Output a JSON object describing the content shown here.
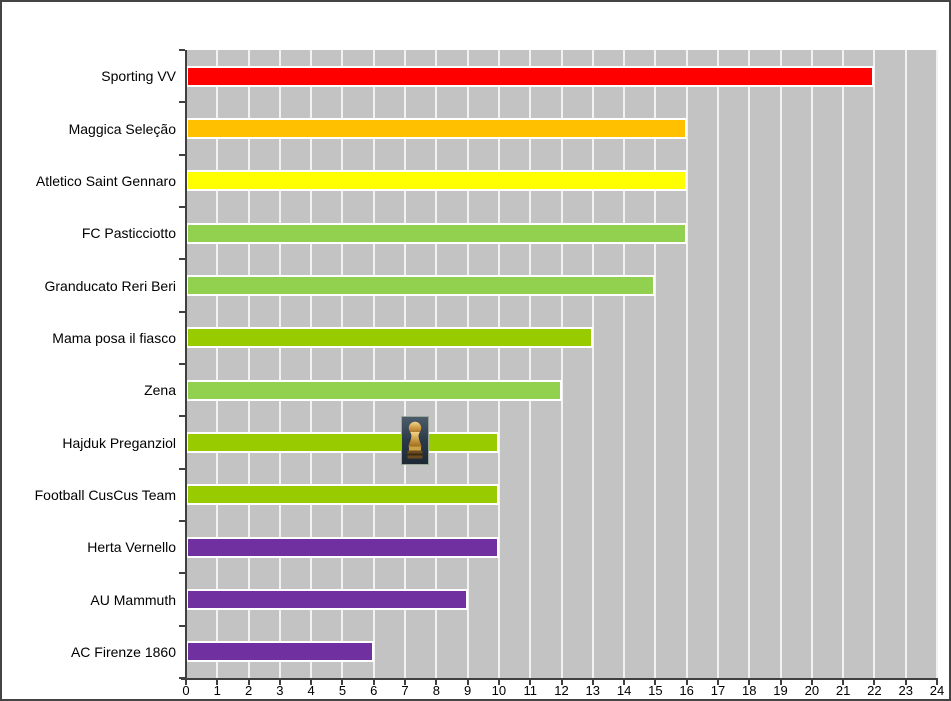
{
  "frame": {
    "border_color": "#444444",
    "background": "#FFFFFF"
  },
  "chart_data": {
    "type": "bar",
    "orientation": "horizontal",
    "title": "",
    "xlabel": "",
    "ylabel": "",
    "categories": [
      "Sporting VV",
      "Maggica Seleção",
      "Atletico Saint Gennaro",
      "FC Pasticciotto",
      "Granducato Reri Beri",
      "Mama posa il fiasco",
      "Zena",
      "Hajduk Preganziol",
      "Football CusCus Team",
      "Herta Vernello",
      "AU Mammuth",
      "AC Firenze 1860"
    ],
    "values": [
      22,
      16,
      16,
      16,
      15,
      13,
      12,
      10,
      10,
      10,
      9,
      6
    ],
    "bar_colors": [
      "#FF0000",
      "#FFC000",
      "#FFFF00",
      "#92D050",
      "#92D050",
      "#99CC00",
      "#92D050",
      "#99CC00",
      "#99CC00",
      "#7030A0",
      "#7030A0",
      "#7030A0"
    ],
    "xlim": [
      0,
      24
    ],
    "x_tick_interval": 1,
    "x_tick_labels": [
      "0",
      "1",
      "2",
      "3",
      "4",
      "5",
      "6",
      "7",
      "8",
      "9",
      "10",
      "11",
      "12",
      "13",
      "14",
      "15",
      "16",
      "17",
      "18",
      "19",
      "20",
      "21",
      "22",
      "23",
      "24"
    ],
    "grid": "vertical-gridlines-only",
    "legend_position": "none",
    "plot_background": "#C3C3C3",
    "gridline_color": "#F2F2F2",
    "bar_border_color": "#FFFFFF",
    "axis_color": "#404040",
    "annotations": [
      {
        "name": "world-cup-trophy-image",
        "category": "Hajduk Preganziol",
        "x_value": 7.3
      }
    ]
  }
}
